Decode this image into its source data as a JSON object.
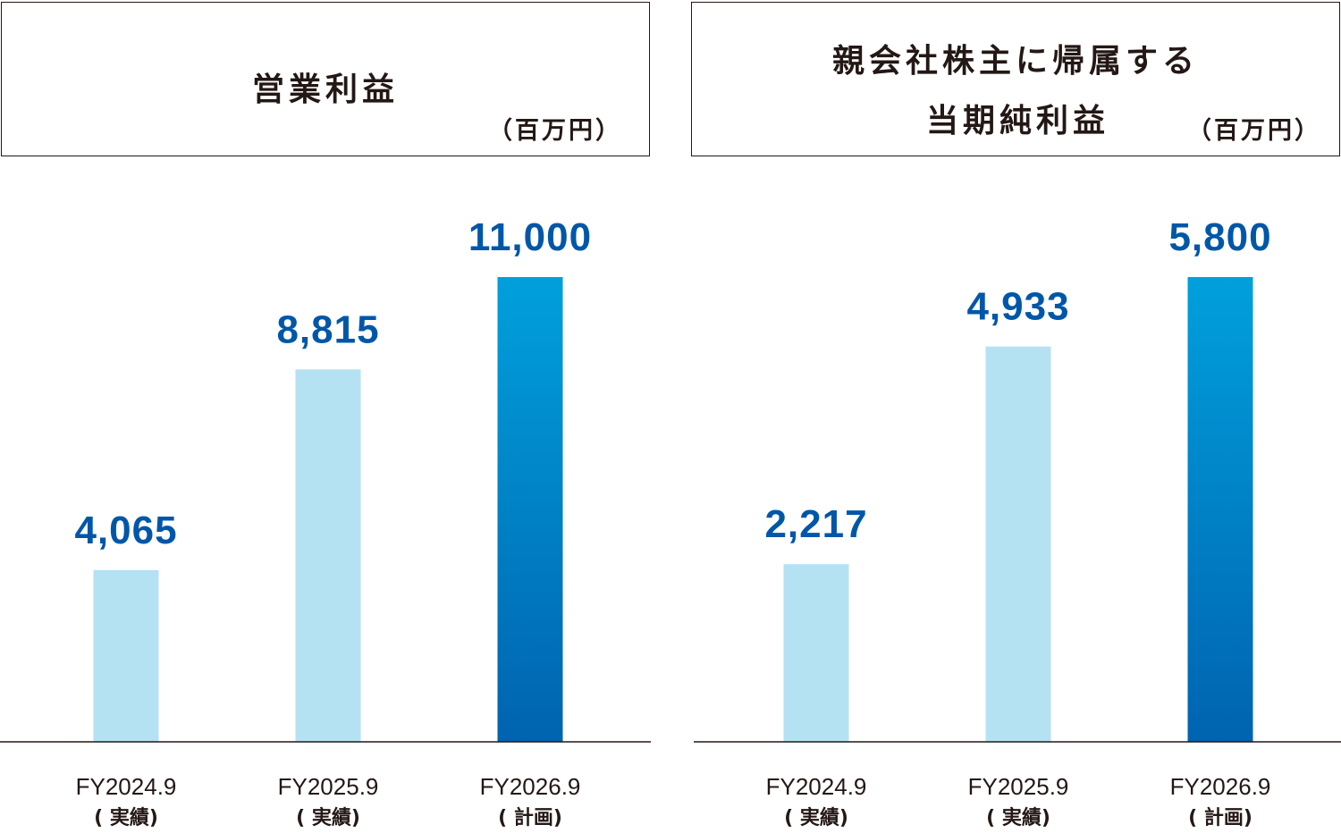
{
  "colors": {
    "actual_bar": "#b5e2f2",
    "plan_bar_top": "#00a0dc",
    "plan_bar_bottom": "#0063b0",
    "value_text": "#0057a8",
    "axis": "#231815"
  },
  "chart_data": [
    {
      "type": "bar",
      "title": "営業利益",
      "unit": "（百万円）",
      "categories": [
        "FY2024.9",
        "FY2025.9",
        "FY2026.9"
      ],
      "category_sub": [
        "( 実績)",
        "( 実績)",
        "( 計画)"
      ],
      "values": [
        4065,
        8815,
        11000
      ],
      "value_labels": [
        "4,065",
        "8,815",
        "11,000"
      ],
      "bar_kind": [
        "actual",
        "actual",
        "plan"
      ],
      "ylim": [
        0,
        11000
      ]
    },
    {
      "type": "bar",
      "title": "親会社株主に帰属する",
      "title_line2": "当期純利益",
      "unit": "（百万円）",
      "categories": [
        "FY2024.9",
        "FY2025.9",
        "FY2026.9"
      ],
      "category_sub": [
        "( 実績)",
        "( 実績)",
        "( 計画)"
      ],
      "values": [
        2217,
        4933,
        5800
      ],
      "value_labels": [
        "2,217",
        "4,933",
        "5,800"
      ],
      "bar_kind": [
        "actual",
        "actual",
        "plan"
      ],
      "ylim": [
        0,
        5800
      ]
    }
  ]
}
